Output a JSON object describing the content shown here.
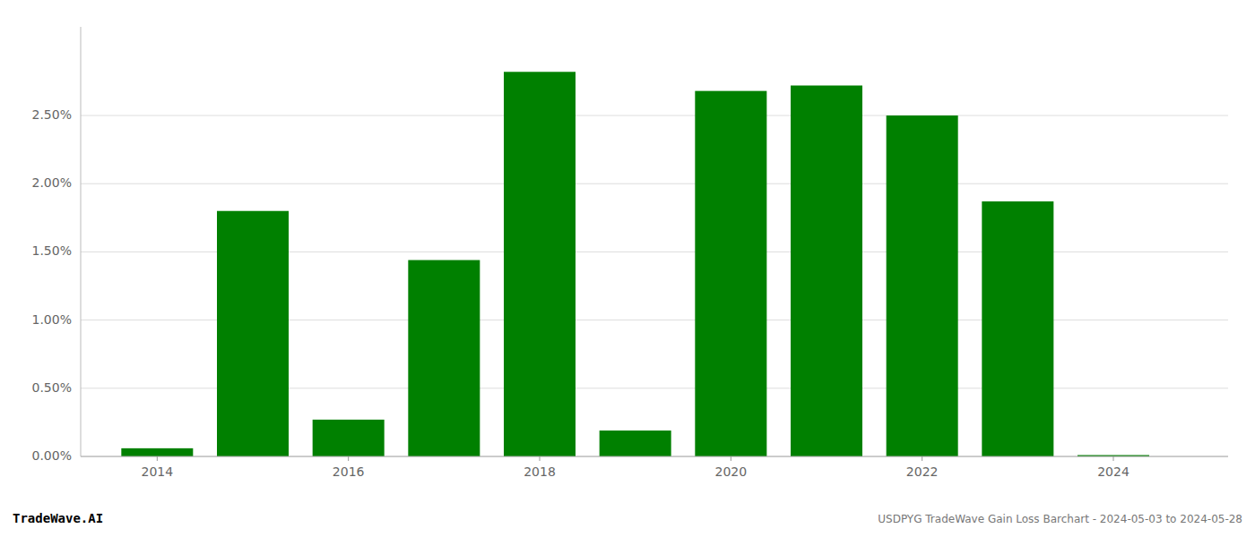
{
  "chart_data": {
    "type": "bar",
    "title": "USDPYG TradeWave Gain Loss Barchart - 2024-05-03 to 2024-05-28",
    "annotations": [
      "TradeWave.AI"
    ],
    "x": [
      2014,
      2015,
      2016,
      2017,
      2018,
      2019,
      2020,
      2021,
      2022,
      2023,
      2024
    ],
    "values": [
      0.0006,
      0.018,
      0.0027,
      0.0144,
      0.0282,
      0.0019,
      0.0268,
      0.0272,
      0.025,
      0.0187,
      0.0001
    ],
    "color": "#008000",
    "xlim": [
      2013.2,
      2025.2
    ],
    "xticks": [
      2014,
      2016,
      2018,
      2020,
      2022,
      2024
    ],
    "ylim": [
      0,
      0.0315
    ],
    "yticks": [
      {
        "value": 0.0,
        "label": "0.00%"
      },
      {
        "value": 0.005,
        "label": "0.50%"
      },
      {
        "value": 0.01,
        "label": "1.00%"
      },
      {
        "value": 0.015,
        "label": "1.50%"
      },
      {
        "value": 0.02,
        "label": "2.00%"
      },
      {
        "value": 0.025,
        "label": "2.50%"
      }
    ],
    "grid": true
  }
}
